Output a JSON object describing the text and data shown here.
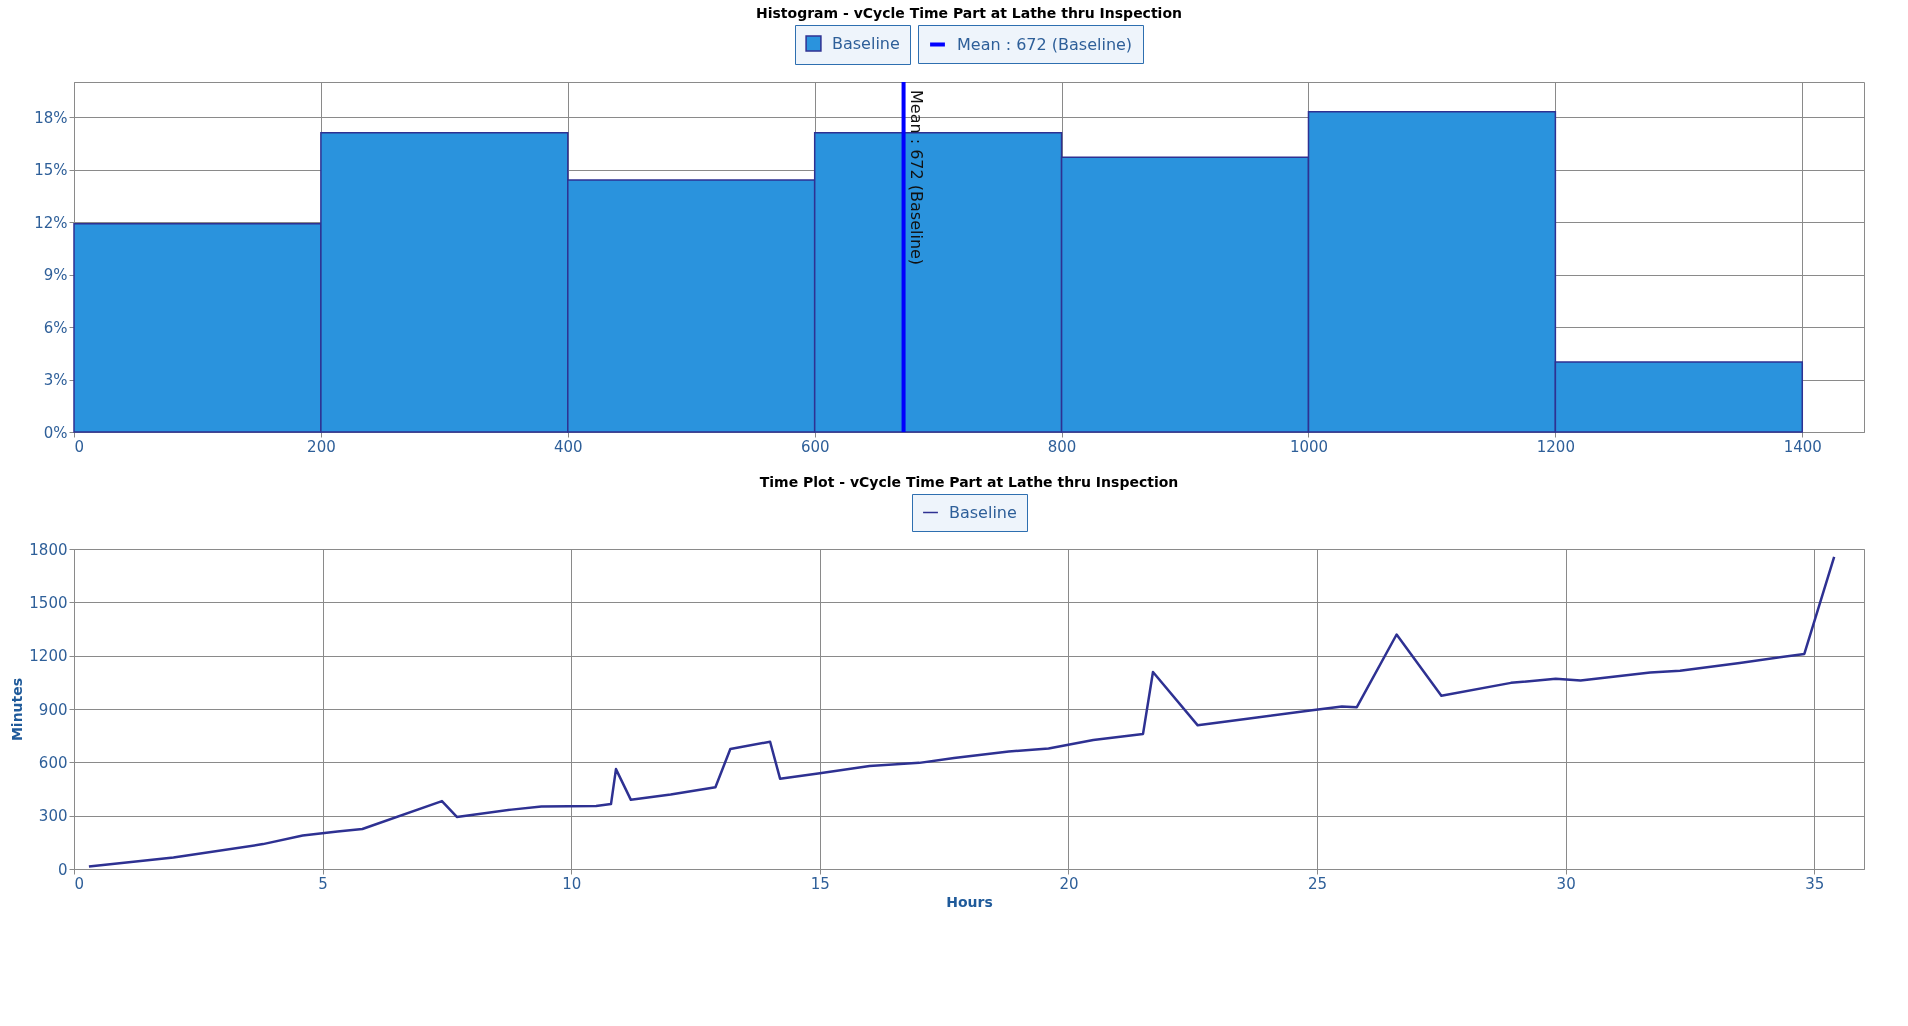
{
  "chart_data": [
    {
      "type": "histogram",
      "title": "Histogram - vCycle Time Part at Lathe thru Inspection",
      "bins": [
        0,
        200,
        400,
        600,
        800,
        1000,
        1200,
        1400
      ],
      "series": [
        {
          "name": "Baseline",
          "color": "#2a93dd",
          "values": [
            11.9,
            17.1,
            14.4,
            17.1,
            15.7,
            18.3,
            4.0
          ]
        }
      ],
      "xlim": [
        0,
        1450
      ],
      "xticks": [
        0,
        200,
        400,
        600,
        800,
        1000,
        1200,
        1400
      ],
      "ylim": [
        0,
        20
      ],
      "yticks": [
        {
          "value": 0,
          "label": "0%"
        },
        {
          "value": 3,
          "label": "3%"
        },
        {
          "value": 6,
          "label": "6%"
        },
        {
          "value": 9,
          "label": "9%"
        },
        {
          "value": 12,
          "label": "12%"
        },
        {
          "value": 15,
          "label": "15%"
        },
        {
          "value": 18,
          "label": "18%"
        }
      ],
      "ref_lines": [
        {
          "axis": "x",
          "value": 672,
          "label": "Mean : 672 (Baseline)",
          "color": "#0000ff"
        }
      ],
      "grid": true,
      "legend": "top"
    },
    {
      "type": "line",
      "title": "Time Plot - vCycle Time Part at Lathe thru Inspection",
      "xlabel": "Hours",
      "ylabel": "Minutes",
      "series": [
        {
          "name": "Baseline",
          "color": "#2e3192",
          "x": [
            0.3,
            2.0,
            3.8,
            4.6,
            5.3,
            5.8,
            7.4,
            7.7,
            8.8,
            9.4,
            10.5,
            10.8,
            10.9,
            11.2,
            12.0,
            12.9,
            13.2,
            14.0,
            14.2,
            15.0,
            16.0,
            17.0,
            17.7,
            18.8,
            19.6,
            20.5,
            21.5,
            21.7,
            22.6,
            23.6,
            24.9,
            25.5,
            25.8,
            26.6,
            27.5,
            28.9,
            29.8,
            30.3,
            31.7,
            32.3,
            33.5,
            34.8,
            35.4
          ],
          "values": [
            14,
            65,
            140,
            188,
            211,
            225,
            382,
            293,
            334,
            351,
            355,
            365,
            562,
            389,
            419,
            460,
            675,
            716,
            508,
            539,
            580,
            597,
            624,
            661,
            678,
            726,
            760,
            1108,
            808,
            845,
            893,
            914,
            910,
            1319,
            975,
            1047,
            1070,
            1060,
            1105,
            1115,
            1159,
            1210,
            1756
          ]
        }
      ],
      "xlim": [
        0,
        36
      ],
      "xticks": [
        0,
        5,
        10,
        15,
        20,
        25,
        30,
        35
      ],
      "ylim": [
        0,
        1800
      ],
      "yticks": [
        0,
        300,
        600,
        900,
        1200,
        1500,
        1800
      ],
      "grid": true,
      "legend": "top",
      "marker": "none",
      "line_style": "solid"
    }
  ]
}
